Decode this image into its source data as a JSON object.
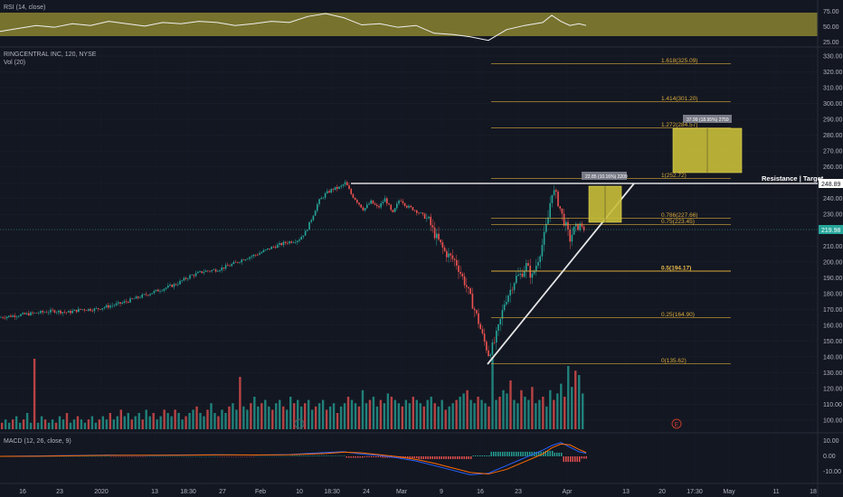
{
  "chart_data": {
    "type": "candlestick",
    "title": "RINGCENTRAL INC, 120, NYSE",
    "volume_label": "Vol (20)",
    "rsi_label": "RSI (14, close)",
    "macd_label": "MACD (12, 26, close, 9)",
    "x_ticks": [
      "16",
      "23",
      "2020",
      "13",
      "18:30",
      "27",
      "Feb",
      "10",
      "18:30",
      "24",
      "Mar",
      "9",
      "16",
      "23",
      "Apr",
      "13",
      "20",
      "17:30",
      "May",
      "11",
      "18"
    ],
    "price_ticks": [
      "330.00",
      "320.00",
      "310.00",
      "300.00",
      "290.00",
      "280.00",
      "270.00",
      "260.00",
      "250.00",
      "240.00",
      "230.00",
      "220.00",
      "210.00",
      "200.00",
      "190.00",
      "180.00",
      "170.00",
      "160.00",
      "150.00",
      "140.00",
      "130.00",
      "120.00",
      "110.00",
      "100.00"
    ],
    "rsi_ticks": [
      "75.00",
      "50.00",
      "25.00"
    ],
    "macd_ticks": [
      "10.00",
      "0.00",
      "-10.00"
    ],
    "ylim": [
      95,
      335
    ],
    "last_price": "219.98",
    "resistance_price": "248.89",
    "resistance_label": "Resistance | Target",
    "fib_levels": [
      {
        "ratio": "1.618",
        "price": 325.09,
        "label": "1.618(325.09)"
      },
      {
        "ratio": "1.414",
        "price": 301.2,
        "label": "1.414(301.20)"
      },
      {
        "ratio": "1.272",
        "price": 284.57,
        "label": "1.272(284.57)"
      },
      {
        "ratio": "1",
        "price": 252.72,
        "label": "1(252.72)"
      },
      {
        "ratio": "0.786",
        "price": 227.66,
        "label": "0.786(227.66)"
      },
      {
        "ratio": "0.75",
        "price": 223.45,
        "label": "0.75(223.45)"
      },
      {
        "ratio": "0.5",
        "price": 194.17,
        "label": "0.5(194.17)"
      },
      {
        "ratio": "0.25",
        "price": 164.9,
        "label": "0.25(164.90)"
      },
      {
        "ratio": "0",
        "price": 135.62,
        "label": "0(135.62)"
      }
    ],
    "measure_small": "22.85 (10.16%) 2209",
    "measure_large": "37.99 (18.95%) 2759",
    "price_path": [
      [
        0,
        165
      ],
      [
        15,
        166
      ],
      [
        30,
        167
      ],
      [
        45,
        168
      ],
      [
        60,
        169
      ],
      [
        75,
        168
      ],
      [
        90,
        170
      ],
      [
        105,
        170
      ],
      [
        120,
        172
      ],
      [
        135,
        174
      ],
      [
        150,
        177
      ],
      [
        165,
        180
      ],
      [
        180,
        183
      ],
      [
        195,
        186
      ],
      [
        210,
        191
      ],
      [
        225,
        194
      ],
      [
        240,
        195
      ],
      [
        255,
        198
      ],
      [
        270,
        202
      ],
      [
        285,
        205
      ],
      [
        300,
        209
      ],
      [
        315,
        212
      ],
      [
        330,
        214
      ],
      [
        338,
        219
      ],
      [
        345,
        228
      ],
      [
        352,
        238
      ],
      [
        360,
        243
      ],
      [
        368,
        246
      ],
      [
        376,
        247
      ],
      [
        382,
        250
      ],
      [
        388,
        243
      ],
      [
        395,
        238
      ],
      [
        402,
        233
      ],
      [
        410,
        238
      ],
      [
        418,
        234
      ],
      [
        426,
        240
      ],
      [
        434,
        230
      ],
      [
        442,
        240
      ],
      [
        450,
        235
      ],
      [
        458,
        233
      ],
      [
        466,
        230
      ],
      [
        474,
        226
      ],
      [
        480,
        218
      ],
      [
        486,
        212
      ],
      [
        492,
        206
      ],
      [
        498,
        203
      ],
      [
        504,
        200
      ],
      [
        510,
        192
      ],
      [
        516,
        184
      ],
      [
        522,
        174
      ],
      [
        528,
        164
      ],
      [
        534,
        152
      ],
      [
        540,
        142
      ],
      [
        546,
        148
      ],
      [
        552,
        160
      ],
      [
        558,
        175
      ],
      [
        564,
        182
      ],
      [
        570,
        190
      ],
      [
        576,
        192
      ],
      [
        582,
        198
      ],
      [
        588,
        190
      ],
      [
        594,
        200
      ],
      [
        600,
        212
      ],
      [
        606,
        228
      ],
      [
        610,
        245
      ],
      [
        614,
        243
      ],
      [
        618,
        236
      ],
      [
        622,
        228
      ],
      [
        626,
        222
      ],
      [
        630,
        214
      ],
      [
        634,
        220
      ],
      [
        638,
        222
      ],
      [
        642,
        224
      ],
      [
        646,
        220
      ]
    ],
    "volume_bars": [
      2,
      3,
      2,
      3,
      4,
      2,
      3,
      5,
      2,
      3,
      2,
      4,
      3,
      2,
      3,
      2,
      4,
      3,
      5,
      2,
      3,
      4,
      3,
      2,
      3,
      4,
      2,
      3,
      4,
      3,
      5,
      3,
      4,
      6,
      4,
      5,
      3,
      4,
      5,
      3,
      6,
      4,
      5,
      3,
      4,
      6,
      5,
      4,
      6,
      5,
      3,
      4,
      5,
      6,
      7,
      5,
      4,
      6,
      8,
      5,
      4,
      6,
      5,
      7,
      8,
      6,
      9,
      7,
      6,
      8,
      10,
      7,
      8,
      9,
      7,
      6,
      8,
      9,
      7,
      6,
      10,
      8,
      9,
      7,
      8,
      9,
      6,
      7,
      8,
      9,
      6,
      7,
      8,
      5,
      7,
      8,
      10,
      9,
      8,
      7,
      12,
      8,
      9,
      10,
      7,
      9,
      8,
      11,
      10,
      9,
      8,
      7,
      9,
      8,
      10,
      9,
      8,
      7,
      9,
      10,
      8,
      7,
      9,
      6,
      7,
      8,
      9,
      10,
      11,
      12,
      9,
      8,
      10,
      9,
      8,
      7,
      14,
      9,
      10,
      12,
      11,
      15,
      9,
      8,
      12,
      10,
      9,
      13,
      8,
      9,
      10,
      7,
      12,
      9,
      11,
      14,
      10,
      9,
      13,
      18,
      9,
      11
    ],
    "rsi_path": [
      [
        0,
        45
      ],
      [
        20,
        50
      ],
      [
        40,
        55
      ],
      [
        60,
        52
      ],
      [
        80,
        58
      ],
      [
        100,
        55
      ],
      [
        120,
        62
      ],
      [
        140,
        58
      ],
      [
        160,
        54
      ],
      [
        180,
        60
      ],
      [
        200,
        58
      ],
      [
        220,
        62
      ],
      [
        240,
        60
      ],
      [
        260,
        55
      ],
      [
        280,
        58
      ],
      [
        300,
        62
      ],
      [
        320,
        60
      ],
      [
        340,
        70
      ],
      [
        360,
        75
      ],
      [
        380,
        68
      ],
      [
        400,
        56
      ],
      [
        420,
        58
      ],
      [
        440,
        52
      ],
      [
        460,
        55
      ],
      [
        480,
        42
      ],
      [
        500,
        40
      ],
      [
        520,
        36
      ],
      [
        540,
        30
      ],
      [
        560,
        48
      ],
      [
        580,
        55
      ],
      [
        600,
        60
      ],
      [
        610,
        72
      ],
      [
        620,
        62
      ],
      [
        630,
        55
      ],
      [
        640,
        58
      ],
      [
        648,
        55
      ]
    ],
    "macd_path": [
      [
        0,
        0
      ],
      [
        40,
        0.2
      ],
      [
        80,
        0.5
      ],
      [
        120,
        0.8
      ],
      [
        160,
        0.6
      ],
      [
        200,
        0.9
      ],
      [
        240,
        1.0
      ],
      [
        280,
        0.8
      ],
      [
        320,
        1.2
      ],
      [
        360,
        2.5
      ],
      [
        380,
        3
      ],
      [
        400,
        1.5
      ],
      [
        420,
        0.5
      ],
      [
        440,
        -1
      ],
      [
        460,
        -3
      ],
      [
        480,
        -6
      ],
      [
        500,
        -9
      ],
      [
        520,
        -12
      ],
      [
        540,
        -11
      ],
      [
        560,
        -6
      ],
      [
        580,
        -1
      ],
      [
        600,
        4
      ],
      [
        610,
        7
      ],
      [
        620,
        9
      ],
      [
        630,
        6
      ],
      [
        640,
        3
      ],
      [
        648,
        2
      ]
    ]
  }
}
